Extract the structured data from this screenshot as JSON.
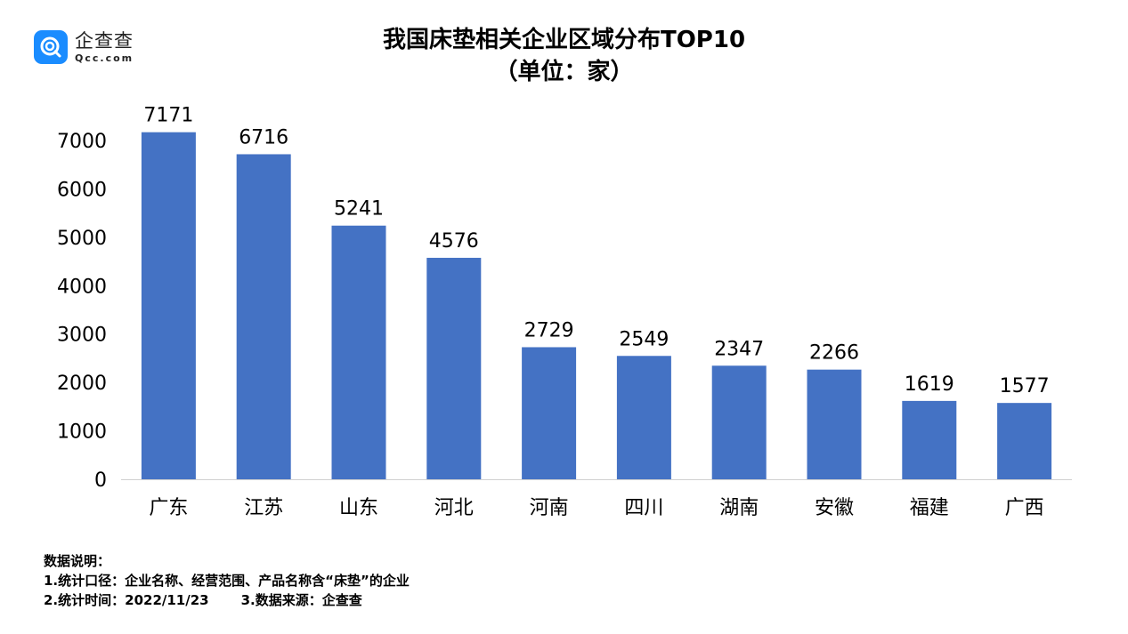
{
  "logo": {
    "text_cn": "企查查",
    "text_en": "Qcc.com",
    "brand_color": "#1a8cff"
  },
  "chart_data": {
    "type": "bar",
    "title": "我国床垫相关企业区域分布TOP10",
    "subtitle": "（单位：家）",
    "categories": [
      "广东",
      "江苏",
      "山东",
      "河北",
      "河南",
      "四川",
      "湖南",
      "安徽",
      "福建",
      "广西"
    ],
    "values": [
      7171,
      6716,
      5241,
      4576,
      2729,
      2549,
      2347,
      2266,
      1619,
      1577
    ],
    "yticks": [
      0,
      1000,
      2000,
      3000,
      4000,
      5000,
      6000,
      7000
    ],
    "ylim": [
      0,
      7000
    ],
    "xlabel": "",
    "ylabel": "",
    "grid": false,
    "bar_color": "#4472c4"
  },
  "notes": {
    "heading": "数据说明：",
    "line1": "1.统计口径：企业名称、经营范围、产品名称含“床垫”的企业",
    "line2a": "2.统计时间：2022/11/23",
    "line2b": "3.数据来源：企查查"
  }
}
